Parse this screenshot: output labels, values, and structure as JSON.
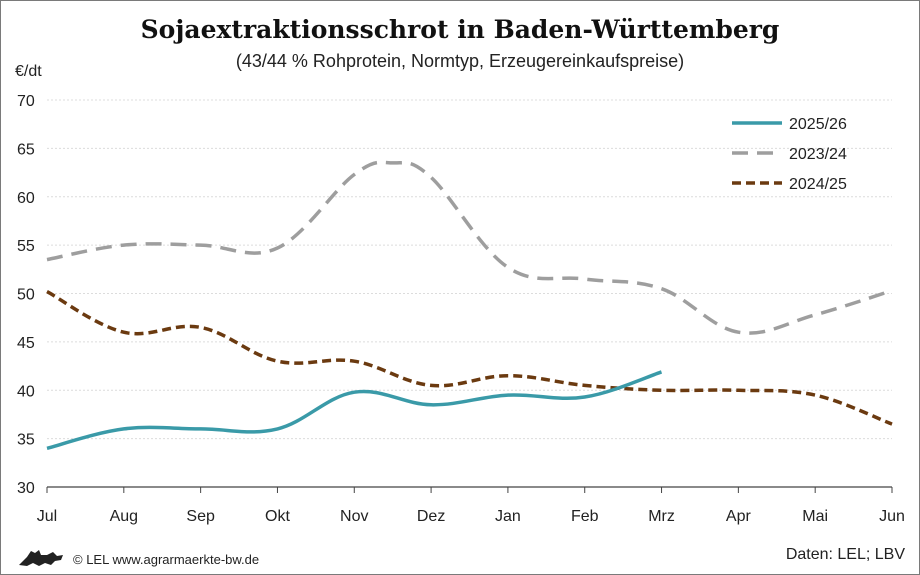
{
  "header": {
    "title": "Sojaextraktionsschrot in Baden-Württemberg",
    "subtitle": "(43/44 % Rohprotein, Normtyp, Erzeugereinkaufspreise)",
    "unit": "€/dt"
  },
  "footer": {
    "source_left": "© LEL www.agrarmaerkte-bw.de",
    "source_right": "Daten: LEL; LBV",
    "logo_icon": "lion-logo-icon"
  },
  "chart_data": {
    "type": "line",
    "title": "Sojaextraktionsschrot in Baden-Württemberg",
    "subtitle": "(43/44 % Rohprotein, Normtyp, Erzeugereinkaufspreise)",
    "ylabel": "€/dt",
    "categories": [
      "Jul",
      "Aug",
      "Sep",
      "Okt",
      "Nov",
      "Dez",
      "Jan",
      "Feb",
      "Mrz",
      "Apr",
      "Mai",
      "Jun"
    ],
    "ylim": [
      30,
      70
    ],
    "yticks": [
      30,
      35,
      40,
      45,
      50,
      55,
      60,
      65,
      70
    ],
    "grid": true,
    "legend_position": "top-right",
    "series": [
      {
        "name": "2025/26",
        "color": "#3a9aa8",
        "style": "solid",
        "points": [
          [
            0,
            34.0
          ],
          [
            1,
            36.0
          ],
          [
            2,
            36.0
          ],
          [
            3,
            36.0
          ],
          [
            4,
            39.8
          ],
          [
            5,
            38.5
          ],
          [
            6,
            39.5
          ],
          [
            7,
            39.3
          ],
          [
            8,
            41.9
          ]
        ]
      },
      {
        "name": "2023/24",
        "color": "#9e9e9e",
        "style": "dashed",
        "points": [
          [
            0,
            53.5
          ],
          [
            1,
            55.0
          ],
          [
            2,
            55.0
          ],
          [
            3,
            54.7
          ],
          [
            4,
            62.3
          ],
          [
            4.5,
            63.5
          ],
          [
            5,
            62.0
          ],
          [
            6,
            52.7
          ],
          [
            7,
            51.5
          ],
          [
            8,
            50.5
          ],
          [
            9,
            46.0
          ],
          [
            10,
            47.8
          ],
          [
            11,
            50.3
          ]
        ]
      },
      {
        "name": "2024/25",
        "color": "#6b3a10",
        "style": "dotted",
        "points": [
          [
            0,
            50.2
          ],
          [
            1,
            46.0
          ],
          [
            2,
            46.5
          ],
          [
            3,
            43.0
          ],
          [
            4,
            43.0
          ],
          [
            5,
            40.5
          ],
          [
            6,
            41.5
          ],
          [
            7,
            40.5
          ],
          [
            8,
            40.0
          ],
          [
            9,
            40.0
          ],
          [
            10,
            39.5
          ],
          [
            11,
            36.5
          ]
        ]
      }
    ]
  }
}
